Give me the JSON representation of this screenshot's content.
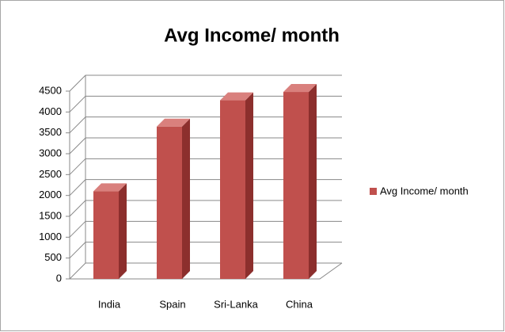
{
  "chart_data": {
    "type": "bar3d",
    "title": "Avg Income/ month",
    "categories": [
      "India",
      "Spain",
      "Sri-Lanka",
      "China"
    ],
    "series": [
      {
        "name": "Avg Income/ month",
        "color": "#c0504d",
        "values": [
          2100,
          3650,
          4280,
          4480
        ]
      }
    ],
    "ylim": [
      0,
      4500
    ],
    "yticks": [
      0,
      500,
      1000,
      1500,
      2000,
      2500,
      3000,
      3500,
      4000,
      4500
    ],
    "grid": true,
    "legend": "right"
  }
}
